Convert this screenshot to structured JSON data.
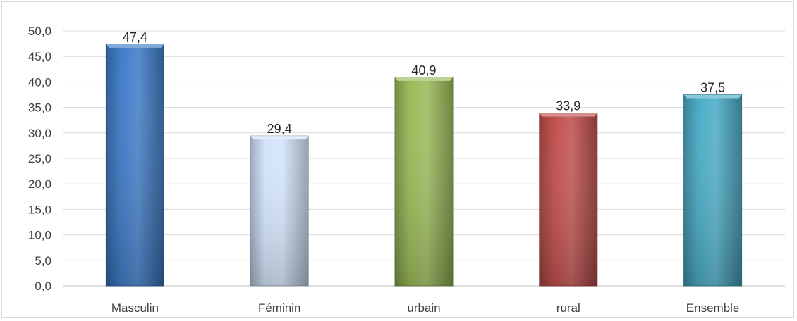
{
  "chart_data": {
    "type": "bar",
    "title": "",
    "xlabel": "",
    "ylabel": "",
    "categories": [
      "Masculin",
      "Féminin",
      "urbain",
      "rural",
      "Ensemble"
    ],
    "values": [
      47.4,
      29.4,
      40.9,
      33.9,
      37.5
    ],
    "value_labels": [
      "47,4",
      "29,4",
      "40,9",
      "33,9",
      "37,5"
    ],
    "colors": [
      "#3F7CC8",
      "#D3E4FA",
      "#9BBB59",
      "#C0504D",
      "#4BACC6"
    ],
    "ylim": [
      0,
      50
    ],
    "yticks": [
      0,
      5,
      10,
      15,
      20,
      25,
      30,
      35,
      40,
      45,
      50
    ],
    "ytick_labels": [
      "0,0",
      "5,0",
      "10,0",
      "15,0",
      "20,0",
      "25,0",
      "30,0",
      "35,0",
      "40,0",
      "45,0",
      "50,0"
    ],
    "grid": true,
    "legend": "none"
  }
}
